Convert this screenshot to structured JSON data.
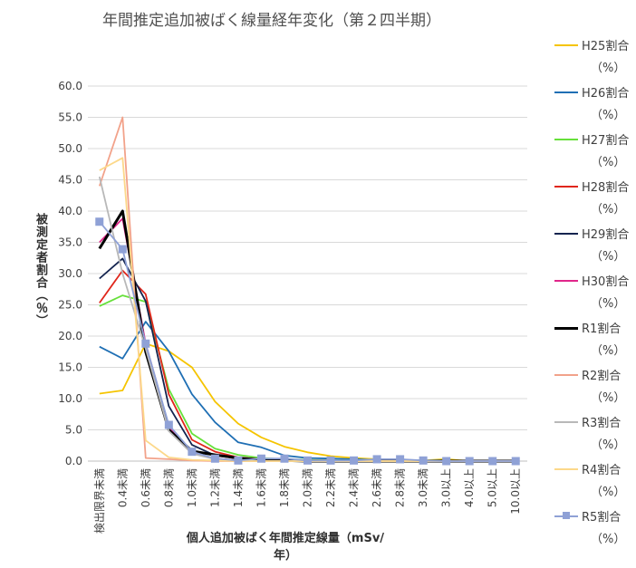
{
  "chart_data": {
    "type": "line",
    "title": "年間推定追加被ばく線量経年変化（第２四半期）",
    "xlabel": "個人追加被ばく年間推定線量（mSv/年）",
    "ylabel": "被測定者割合（％）",
    "ylim": [
      0,
      60
    ],
    "yticks": [
      "0.0",
      "5.0",
      "10.0",
      "15.0",
      "20.0",
      "25.0",
      "30.0",
      "35.0",
      "40.0",
      "45.0",
      "50.0",
      "55.0",
      "60.0"
    ],
    "grid": "horizontal",
    "legend_position": "right",
    "categories": [
      "検出限界未満",
      "0.4未満",
      "0.6未満",
      "0.8未満",
      "1.0未満",
      "1.2未満",
      "1.4未満",
      "1.6未満",
      "1.8未満",
      "2.0未満",
      "2.2未満",
      "2.4未満",
      "2.6未満",
      "2.8未満",
      "3.0未満",
      "3.0以上",
      "4.0以上",
      "5.0以上",
      "10.0以上"
    ],
    "series": [
      {
        "name": "H25割合",
        "unit": "（%）",
        "color": "#f5c400",
        "values": [
          10.8,
          11.3,
          18.8,
          17.6,
          15.0,
          9.5,
          6.0,
          3.8,
          2.3,
          1.4,
          0.8,
          0.5,
          0.3,
          0.2,
          0.1,
          0.3,
          0.0,
          0.0,
          0.0
        ]
      },
      {
        "name": "H26割合",
        "unit": "（%）",
        "color": "#1f6fb4",
        "values": [
          18.3,
          16.4,
          22.3,
          17.6,
          10.7,
          6.2,
          3.0,
          2.2,
          0.9,
          0.5,
          0.4,
          0.3,
          0.2,
          0.1,
          0.1,
          0.1,
          0.0,
          0.0,
          0.0
        ]
      },
      {
        "name": "H27割合",
        "unit": "（%）",
        "color": "#66e03a",
        "values": [
          24.8,
          26.5,
          25.5,
          11.5,
          4.4,
          2.0,
          1.0,
          0.5,
          0.3,
          0.2,
          0.1,
          0.1,
          0.1,
          0.0,
          0.0,
          0.0,
          0.0,
          0.0,
          0.0
        ]
      },
      {
        "name": "H28割合",
        "unit": "（%）",
        "color": "#e0261b",
        "values": [
          25.3,
          30.5,
          26.7,
          10.7,
          3.4,
          1.5,
          0.6,
          0.3,
          0.2,
          0.1,
          0.1,
          0.0,
          0.0,
          0.0,
          0.0,
          0.0,
          0.0,
          0.0,
          0.0
        ]
      },
      {
        "name": "H29割合",
        "unit": "（%）",
        "color": "#14244f",
        "values": [
          29.2,
          32.4,
          25.6,
          8.8,
          2.6,
          0.9,
          0.4,
          0.2,
          0.1,
          0.1,
          0.0,
          0.0,
          0.0,
          0.0,
          0.0,
          0.0,
          0.0,
          0.0,
          0.0
        ]
      },
      {
        "name": "H30割合",
        "unit": "（%）",
        "color": "#e0268a",
        "values": [
          35.0,
          38.8,
          18.8,
          5.6,
          1.3,
          0.4,
          0.1,
          0.0,
          0.0,
          0.0,
          0.0,
          0.0,
          0.0,
          0.0,
          0.0,
          0.0,
          0.0,
          0.0,
          0.0
        ]
      },
      {
        "name": "R1割合",
        "unit": "（%）",
        "color": "#000000",
        "width": 3,
        "values": [
          34.0,
          40.0,
          17.5,
          5.0,
          1.6,
          1.0,
          0.5,
          0.2,
          0.1,
          0.0,
          0.0,
          0.0,
          0.0,
          0.0,
          0.0,
          0.0,
          0.0,
          0.0,
          0.0
        ]
      },
      {
        "name": "R2割合",
        "unit": "（%）",
        "color": "#f2a28a",
        "values": [
          44.0,
          55.0,
          0.5,
          0.3,
          0.1,
          0.0,
          0.0,
          0.0,
          0.0,
          0.0,
          0.0,
          0.0,
          0.0,
          0.0,
          0.0,
          0.0,
          0.0,
          0.0,
          0.0
        ]
      },
      {
        "name": "R3割合",
        "unit": "（%）",
        "color": "#b8b8b8",
        "values": [
          45.5,
          30.0,
          18.0,
          4.8,
          1.2,
          0.3,
          0.1,
          0.0,
          0.0,
          0.0,
          0.0,
          0.0,
          0.0,
          0.0,
          0.0,
          0.0,
          0.0,
          0.0,
          0.0
        ]
      },
      {
        "name": "R4割合",
        "unit": "（%）",
        "color": "#fcd88a",
        "values": [
          46.5,
          48.5,
          3.3,
          0.6,
          0.2,
          0.1,
          0.0,
          0.0,
          0.0,
          0.0,
          0.0,
          0.0,
          0.0,
          0.0,
          0.0,
          0.0,
          0.0,
          0.0,
          0.0
        ]
      },
      {
        "name": "R5割合",
        "unit": "（%）",
        "color": "#8fa1d6",
        "marker": "square",
        "values": [
          38.3,
          33.9,
          18.8,
          5.8,
          1.5,
          0.4,
          0.1,
          0.4,
          0.4,
          0.1,
          0.1,
          0.1,
          0.3,
          0.3,
          0.1,
          0.0,
          0.0,
          0.0,
          0.0
        ]
      }
    ]
  }
}
